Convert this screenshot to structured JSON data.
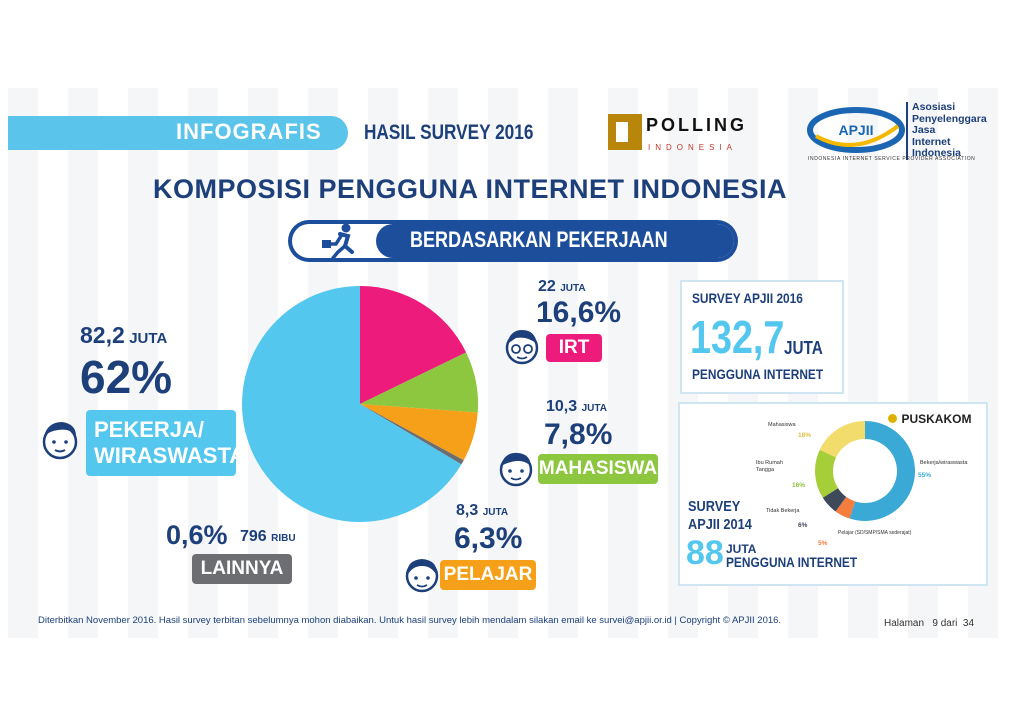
{
  "header": {
    "infografis": "INFOGRAFIS",
    "hasil_survey": "HASIL SURVEY 2016",
    "polling_logo_word": "POLLING",
    "polling_logo_sub": "INDONESIA",
    "apjii_logo": "APJII",
    "apjii_name_lines": [
      "Asosiasi",
      "Penyelenggara",
      "Jasa",
      "Internet",
      "Indonesia"
    ],
    "apjii_tagline": "INDONESIA INTERNET SERVICE PROVIDER ASSOCIATION"
  },
  "title": "KOMPOSISI PENGGUNA INTERNET INDONESIA",
  "subtitle": "BERDASARKAN PEKERJAAN",
  "chart_data": {
    "type": "pie",
    "slices": [
      {
        "label": "PEKERJA/ WIRASWASTA",
        "percent": 62,
        "count": "82,2 JUTA",
        "color": "#54c7ef"
      },
      {
        "label": "IRT",
        "percent": 16.6,
        "count": "22 JUTA",
        "color": "#ec1b7c"
      },
      {
        "label": "MAHASISWA",
        "percent": 7.8,
        "count": "10,3 JUTA",
        "color": "#8dc63f"
      },
      {
        "label": "PELAJAR",
        "percent": 6.3,
        "count": "8,3 JUTA",
        "color": "#f6a01a"
      },
      {
        "label": "LAINNYA",
        "percent": 0.6,
        "count": "796 RIBU",
        "color": "#6d6e71"
      }
    ]
  },
  "labels": {
    "pekerja": {
      "num": "82,2",
      "unit": "JUTA",
      "pct": "62%",
      "tag1": "PEKERJA/",
      "tag2": "WIRASWASTA",
      "color": "#54c7ef"
    },
    "irt": {
      "num": "22",
      "unit": "JUTA",
      "pct": "16,6%",
      "tag": "IRT",
      "color": "#ec1b7c"
    },
    "mahasiswa": {
      "num": "10,3",
      "unit": "JUTA",
      "pct": "7,8%",
      "tag": "MAHASISWA",
      "color": "#8dc63f"
    },
    "pelajar": {
      "num": "8,3",
      "unit": "JUTA",
      "pct": "6,3%",
      "tag": "PELAJAR",
      "color": "#f6a01a"
    },
    "lainnya": {
      "pct": "0,6%",
      "num": "796",
      "unit": "RIBU",
      "tag": "LAINNYA",
      "color": "#6d6e71"
    }
  },
  "survey2016": {
    "title": "SURVEY APJII 2016",
    "value": "132,7",
    "unit": "JUTA",
    "caption": "PENGGUNA INTERNET"
  },
  "survey2014": {
    "logo": "PUSKAKOM",
    "title1": "SURVEY",
    "title2": "APJII 2014",
    "value": "88",
    "unit": "JUTA",
    "caption": "PENGGUNA INTERNET",
    "donut": [
      {
        "label": "Bekerja/wiraswasta",
        "pct": "55%",
        "value": 55,
        "color": "#3aa9d6"
      },
      {
        "label": "Pelajar (SD/SMP/SMA sederajat)",
        "pct": "5%",
        "value": 5,
        "color": "#f47c3c"
      },
      {
        "label": "Tidak Bekerja",
        "pct": "6%",
        "value": 6,
        "color": "#3e4a5a"
      },
      {
        "label": "Ibu Rumah Tangga",
        "pct": "16%",
        "value": 16,
        "color": "#a6ce39"
      },
      {
        "label": "Mahasiswa",
        "pct": "18%",
        "value": 18,
        "color": "#f2dc6b"
      }
    ]
  },
  "footer": {
    "text": "Diterbitkan November 2016. Hasil survey terbitan sebelumnya mohon diabaikan. Untuk hasil survey lebih mendalam silakan email ke survei@apjii.or.id  |  Copyright © APJII 2016.",
    "page": "Halaman   9 dari  34"
  }
}
